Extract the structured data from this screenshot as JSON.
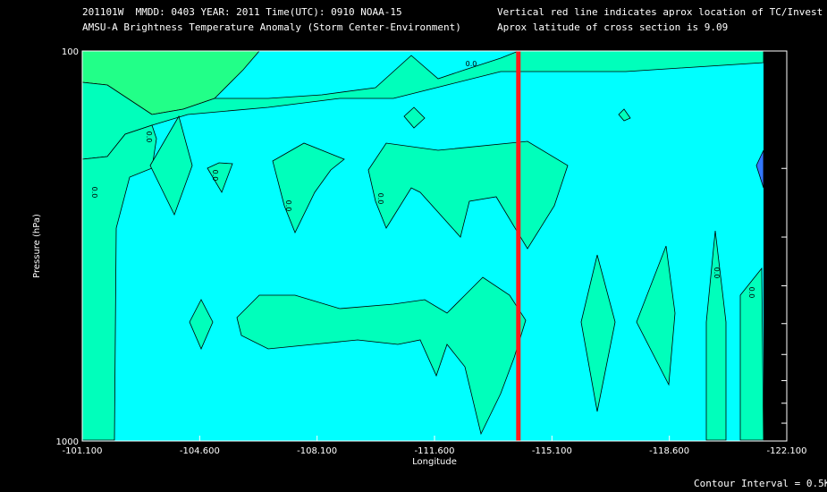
{
  "header": {
    "line1_left": "201101W  MMDD: 0403 YEAR: 2011 Time(UTC): 0910 NOAA-15",
    "line2_left": "AMSU-A Brightness Temperature Anomaly (Storm Center-Environment)",
    "line1_right": "Vertical red line indicates aprox location of TC/Invest",
    "line2_right": "Aprox latitude of cross section is 9.09"
  },
  "footer": {
    "contour_interval": "Contour Interval = 0.5K"
  },
  "colors": {
    "background": "#000000",
    "field": "#00ffff",
    "positive_region": "#00ffbb",
    "upper_region": "#22ff88",
    "tc_line": "#ff1a1a",
    "no_data": "#000000"
  },
  "chart_data": {
    "type": "contour",
    "xlabel": "Longitude",
    "ylabel": "Pressure (hPa)",
    "x_ticks": [
      "-101.100",
      "-104.600",
      "-108.100",
      "-111.600",
      "-115.100",
      "-118.600",
      "-122.100"
    ],
    "y_ticks": [
      "100",
      "1000"
    ],
    "xlim": [
      -101.1,
      -122.1
    ],
    "ylim": [
      100,
      1000
    ],
    "y_scale": "log",
    "tc_longitude": -114.1,
    "contour_interval_K": 0.5,
    "contour_labels": [
      "0.0",
      "0.0",
      "0.0",
      "0.0",
      "0.0",
      "0.0",
      "0.0",
      "0.0"
    ],
    "filled_regions": [
      {
        "name": "upper-left",
        "level": 0.0
      },
      {
        "name": "upper-center",
        "level": 0.0
      },
      {
        "name": "left-column",
        "level": 0.0
      },
      {
        "name": "mid-level-band",
        "level": 0.0
      },
      {
        "name": "lower-level-band",
        "level": 0.0
      },
      {
        "name": "east-lower-lobes",
        "level": 0.0
      }
    ]
  }
}
